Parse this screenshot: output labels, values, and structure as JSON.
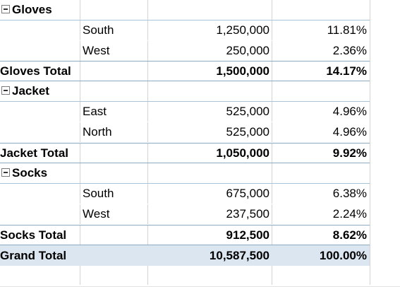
{
  "pivot": {
    "groups": [
      {
        "name": "Gloves",
        "items": [
          {
            "region": "South",
            "value": "1,250,000",
            "percent": "11.81%"
          },
          {
            "region": "West",
            "value": "250,000",
            "percent": "2.36%"
          }
        ],
        "total_label": "Gloves Total",
        "total_value": "1,500,000",
        "total_percent": "14.17%"
      },
      {
        "name": "Jacket",
        "items": [
          {
            "region": "East",
            "value": "525,000",
            "percent": "4.96%"
          },
          {
            "region": "North",
            "value": "525,000",
            "percent": "4.96%"
          }
        ],
        "total_label": "Jacket Total",
        "total_value": "1,050,000",
        "total_percent": "9.92%"
      },
      {
        "name": "Socks",
        "items": [
          {
            "region": "South",
            "value": "675,000",
            "percent": "6.38%"
          },
          {
            "region": "West",
            "value": "237,500",
            "percent": "2.24%"
          }
        ],
        "total_label": "Socks Total",
        "total_value": "912,500",
        "total_percent": "8.62%"
      }
    ],
    "grand_total": {
      "label": "Grand Total",
      "value": "10,587,500",
      "percent": "100.00%"
    }
  },
  "colors": {
    "grand_total_bg": "#dce6f1",
    "border": "#8eaac0"
  }
}
